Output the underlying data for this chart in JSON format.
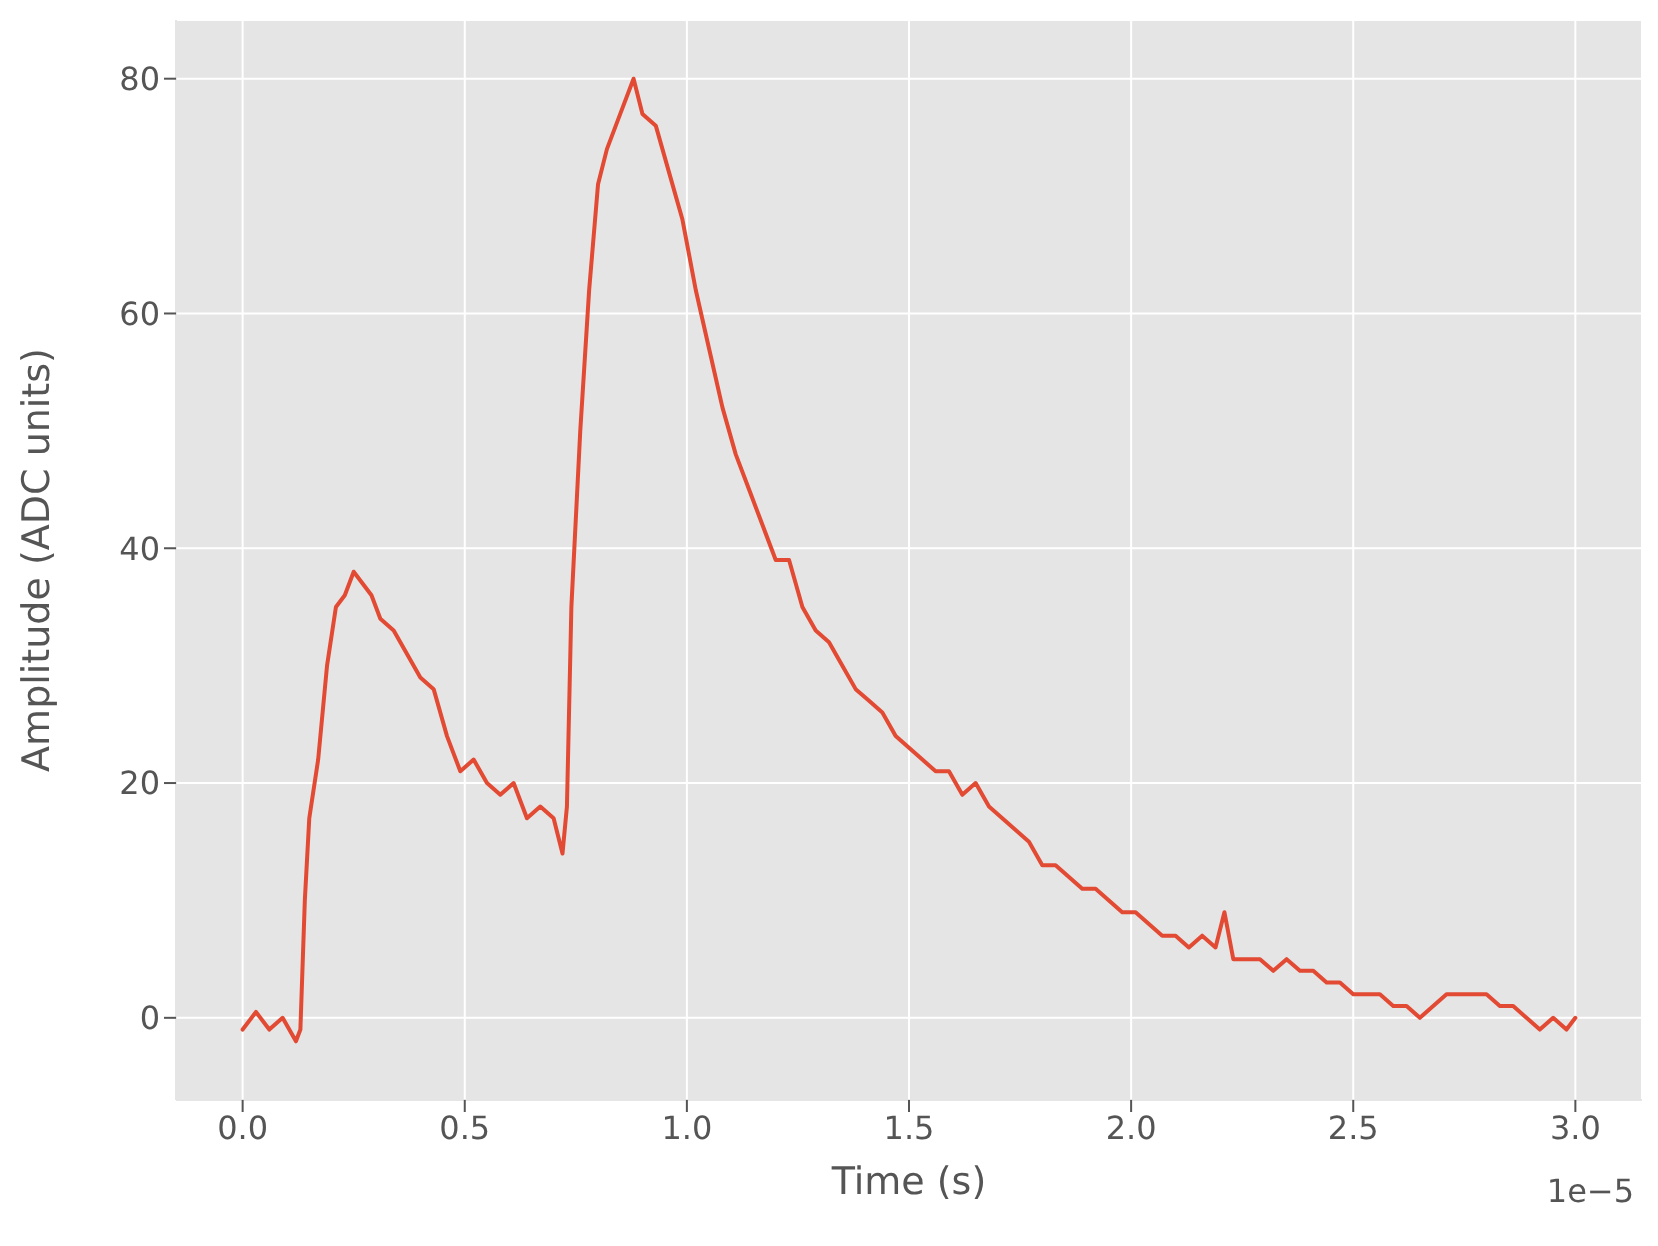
{
  "chart_data": {
    "type": "line",
    "xlabel": "Time (s)",
    "ylabel": "Amplitude (ADC units)",
    "annotations": [
      "1e−5"
    ],
    "xlim": [
      -0.15,
      3.15
    ],
    "ylim": [
      -7,
      85
    ],
    "xticks": [
      {
        "value": 0,
        "label": "0.0"
      },
      0.5,
      {
        "value": 1,
        "label": "1.0"
      },
      1.5,
      {
        "value": 2,
        "label": "2.0"
      },
      2.5,
      {
        "value": 3,
        "label": "3.0"
      }
    ],
    "yticks": [
      0,
      20,
      40,
      60,
      80
    ],
    "grid": true,
    "marker": "none",
    "line_style": "solid",
    "series": [
      {
        "color": "#e24a33",
        "x": [
          0,
          0.03,
          0.06,
          0.09,
          0.12,
          0.13,
          0.14,
          0.15,
          0.17,
          0.19,
          0.21,
          0.23,
          0.25,
          0.27,
          0.29,
          0.31,
          0.34,
          0.37,
          0.4,
          0.43,
          0.46,
          0.49,
          0.52,
          0.55,
          0.58,
          0.61,
          0.64,
          0.67,
          0.7,
          0.72,
          0.73,
          0.74,
          0.76,
          0.78,
          0.8,
          0.82,
          0.85,
          0.88,
          0.9,
          0.93,
          0.96,
          0.99,
          1.02,
          1.05,
          1.08,
          1.11,
          1.14,
          1.17,
          1.2,
          1.23,
          1.26,
          1.29,
          1.32,
          1.35,
          1.38,
          1.41,
          1.44,
          1.47,
          1.5,
          1.53,
          1.56,
          1.59,
          1.62,
          1.65,
          1.68,
          1.71,
          1.74,
          1.77,
          1.8,
          1.83,
          1.86,
          1.89,
          1.92,
          1.95,
          1.98,
          2.01,
          2.04,
          2.07,
          2.1,
          2.13,
          2.16,
          2.19,
          2.21,
          2.23,
          2.26,
          2.29,
          2.32,
          2.35,
          2.38,
          2.41,
          2.44,
          2.47,
          2.5,
          2.53,
          2.56,
          2.59,
          2.62,
          2.65,
          2.68,
          2.71,
          2.74,
          2.77,
          2.8,
          2.83,
          2.86,
          2.89,
          2.92,
          2.95,
          2.98,
          3
        ],
        "values": [
          -1,
          0.5,
          -1,
          0,
          -2,
          -1,
          10,
          17,
          22,
          30,
          35,
          36,
          38,
          37,
          36,
          34,
          33,
          31,
          29,
          28,
          24,
          21,
          22,
          20,
          19,
          20,
          17,
          18,
          17,
          14,
          18,
          35,
          50,
          62,
          71,
          74,
          77,
          80,
          77,
          76,
          72,
          68,
          62,
          57,
          52,
          48,
          45,
          42,
          39,
          39,
          35,
          33,
          32,
          30,
          28,
          27,
          26,
          24,
          23,
          22,
          21,
          21,
          19,
          20,
          18,
          17,
          16,
          15,
          13,
          13,
          12,
          11,
          11,
          10,
          9,
          9,
          8,
          7,
          7,
          6,
          7,
          6,
          9,
          5,
          5,
          5,
          4,
          5,
          4,
          4,
          3,
          3,
          2,
          2,
          2,
          1,
          1,
          0,
          1,
          2,
          2,
          2,
          2,
          1,
          1,
          0,
          -1,
          0,
          -1,
          0
        ]
      }
    ]
  }
}
